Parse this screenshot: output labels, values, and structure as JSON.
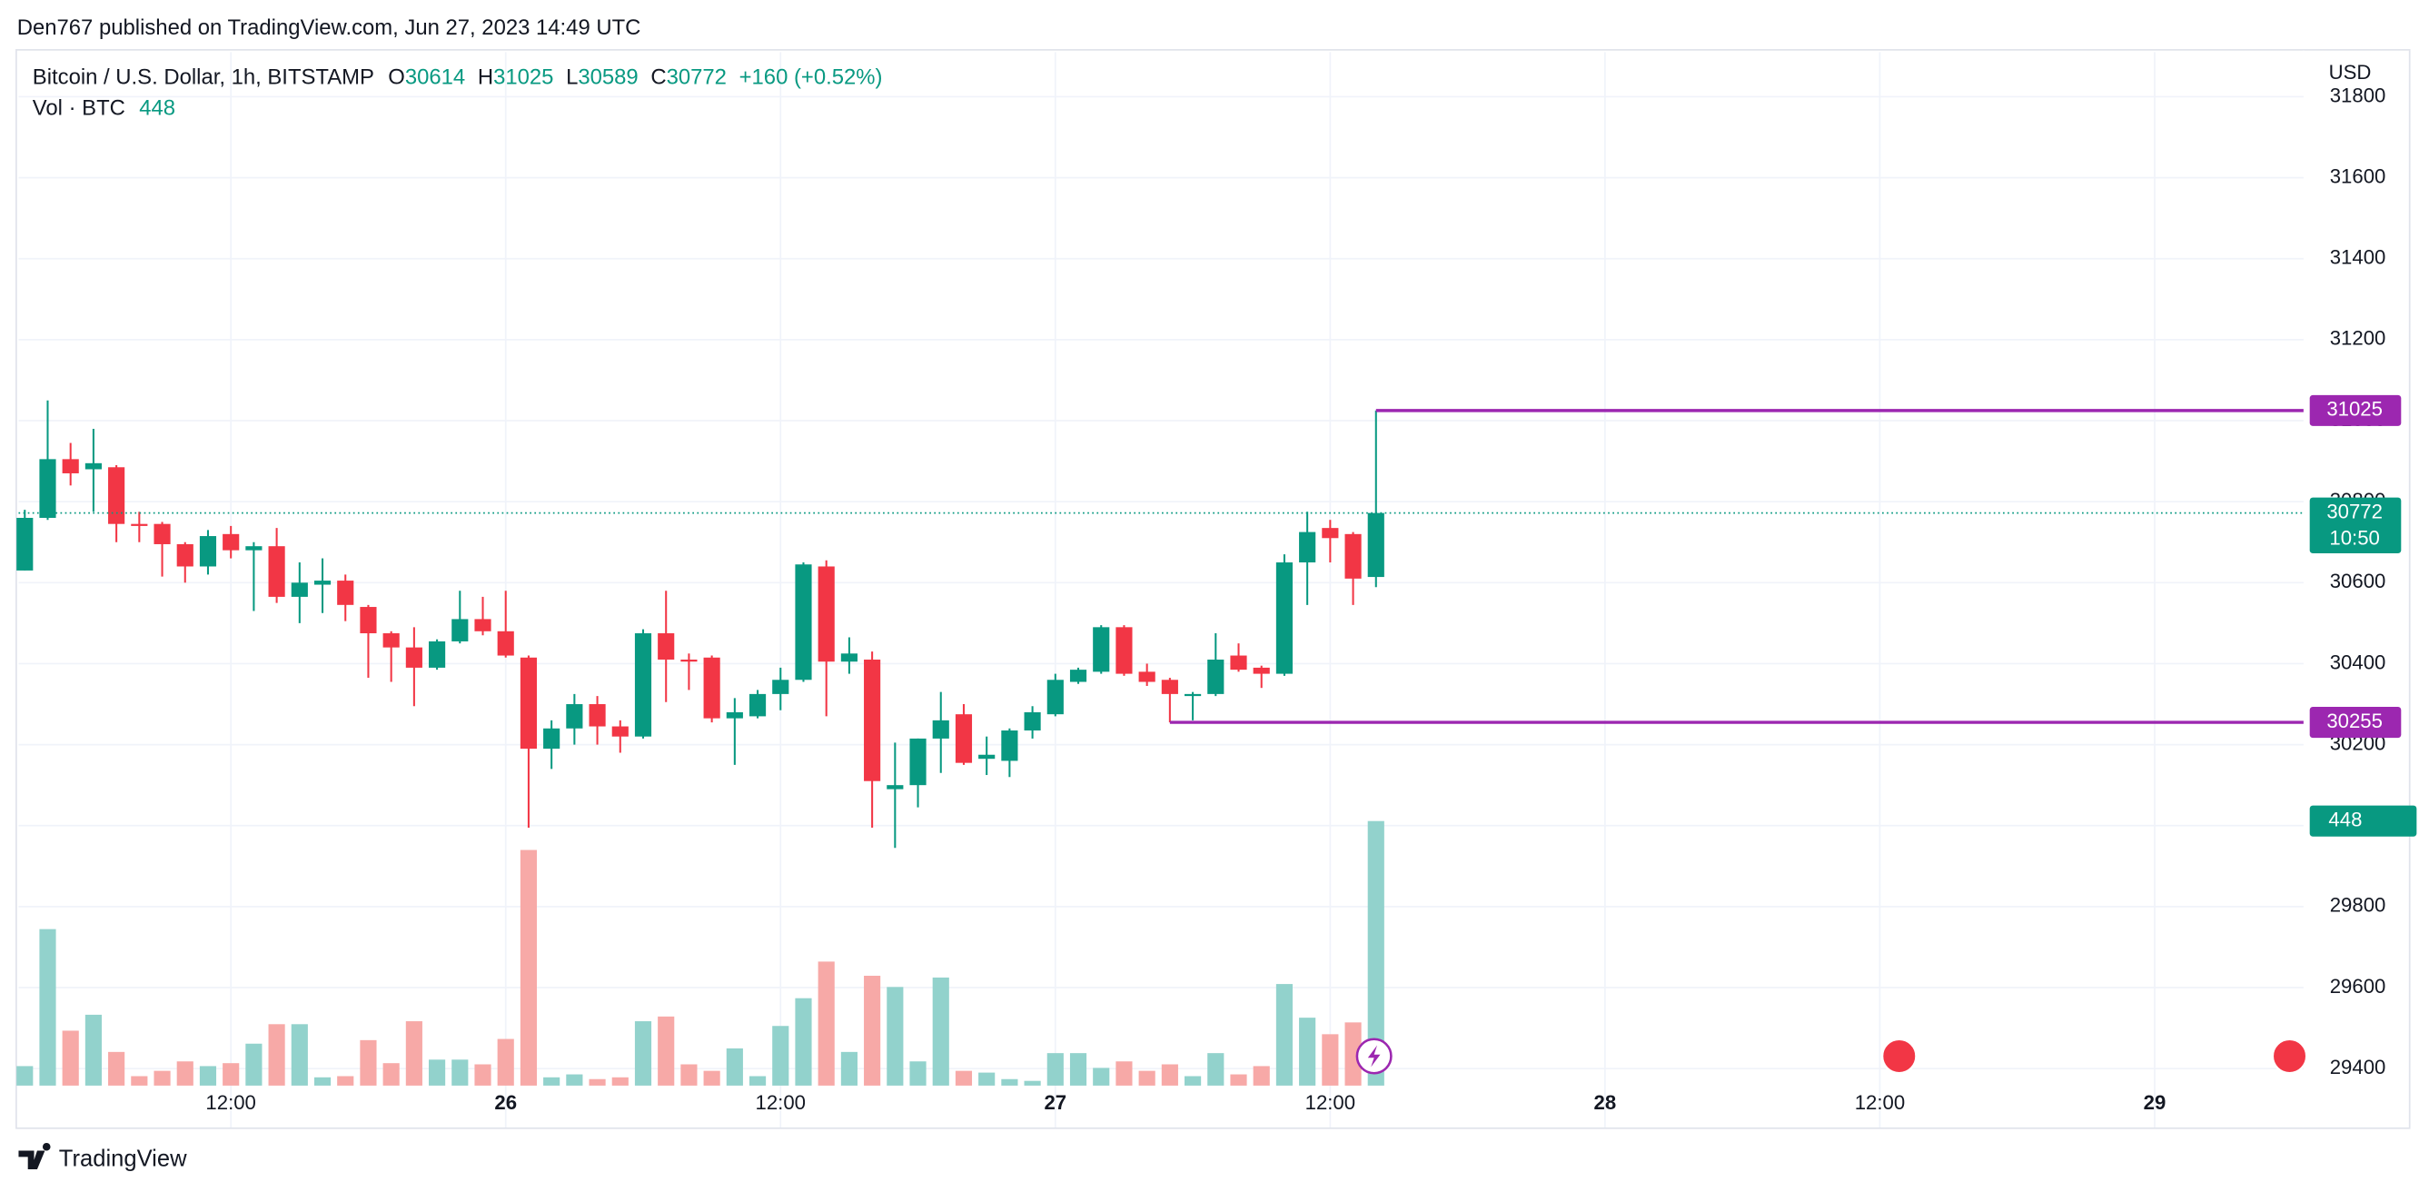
{
  "header": "Den767 published on TradingView.com, Jun 27, 2023 14:49 UTC",
  "footer": "TradingView",
  "chart_data": {
    "type": "candlestick",
    "legend": {
      "symbol": "Bitcoin / U.S. Dollar, 1h, BITSTAMP",
      "labels": [
        "O",
        "H",
        "L",
        "C"
      ],
      "change": "+160 (+0.52%)",
      "volume_label": "Vol · BTC"
    },
    "currency": "USD",
    "countdown": "10:50",
    "up_color": "#089981",
    "down_color": "#f23645",
    "volume_up_color": "#92d2cc",
    "volume_down_color": "#f7a9a7",
    "x": [
      3,
      4,
      5,
      6,
      7,
      8,
      9,
      10,
      11,
      12,
      13,
      14,
      15,
      16,
      17,
      18,
      19,
      20,
      21,
      22,
      23,
      24,
      25,
      26,
      27,
      28,
      29,
      30,
      31,
      32,
      33,
      34,
      35,
      36,
      37,
      38,
      39,
      40,
      41,
      42,
      43,
      44,
      45,
      46,
      47,
      48,
      49,
      50,
      51,
      52,
      53,
      54,
      55,
      56,
      57,
      58,
      59,
      60,
      61,
      62
    ],
    "open": [
      30630,
      30760,
      30905,
      30880,
      30885,
      30745,
      30745,
      30695,
      30640,
      30720,
      30680,
      30690,
      30565,
      30595,
      30605,
      30540,
      30475,
      30440,
      30390,
      30455,
      30510,
      30480,
      30415,
      30190,
      30240,
      30300,
      30245,
      30220,
      30475,
      30410,
      30415,
      30265,
      30270,
      30325,
      30360,
      30640,
      30405,
      30410,
      30090,
      30100,
      30215,
      30275,
      30165,
      30160,
      30235,
      30275,
      30355,
      30380,
      30490,
      30380,
      30360,
      30320,
      30325,
      30420,
      30390,
      30375,
      30650,
      30735,
      30720,
      30614
    ],
    "high": [
      30780,
      31050,
      30945,
      30980,
      30890,
      30775,
      30750,
      30700,
      30730,
      30740,
      30700,
      30735,
      30650,
      30660,
      30620,
      30545,
      30480,
      30490,
      30460,
      30580,
      30565,
      30580,
      30420,
      30260,
      30325,
      30320,
      30260,
      30485,
      30580,
      30425,
      30420,
      30315,
      30335,
      30390,
      30650,
      30655,
      30465,
      30430,
      30205,
      30215,
      30330,
      30300,
      30220,
      30240,
      30295,
      30375,
      30390,
      30495,
      30495,
      30400,
      30365,
      30330,
      30475,
      30450,
      30395,
      30670,
      30775,
      30755,
      30725,
      31025
    ],
    "low": [
      30630,
      30755,
      30840,
      30775,
      30700,
      30700,
      30615,
      30600,
      30620,
      30660,
      30530,
      30550,
      30500,
      30525,
      30505,
      30365,
      30355,
      30295,
      30385,
      30450,
      30470,
      30415,
      29995,
      30140,
      30200,
      30200,
      30180,
      30215,
      30305,
      30335,
      30255,
      30150,
      30265,
      30285,
      30355,
      30270,
      30375,
      29995,
      29945,
      30045,
      30130,
      30150,
      30125,
      30120,
      30215,
      30270,
      30350,
      30375,
      30370,
      30345,
      30255,
      30260,
      30320,
      30380,
      30340,
      30370,
      30545,
      30650,
      30545,
      30589
    ],
    "close": [
      30760,
      30905,
      30870,
      30895,
      30745,
      30740,
      30695,
      30640,
      30715,
      30680,
      30690,
      30565,
      30600,
      30605,
      30545,
      30475,
      30440,
      30390,
      30455,
      30510,
      30480,
      30420,
      30190,
      30240,
      30300,
      30245,
      30220,
      30475,
      30410,
      30405,
      30265,
      30280,
      30325,
      30360,
      30645,
      30405,
      30425,
      30110,
      30100,
      30215,
      30260,
      30155,
      30175,
      30235,
      30280,
      30360,
      30385,
      30490,
      30375,
      30355,
      30325,
      30325,
      30410,
      30385,
      30375,
      30650,
      30725,
      30710,
      30610,
      30772
    ],
    "volume": [
      33,
      265,
      93,
      120,
      57,
      16,
      25,
      41,
      33,
      38,
      71,
      104,
      104,
      14,
      16,
      77,
      38,
      109,
      44,
      44,
      36,
      79,
      399,
      14,
      19,
      11,
      14,
      109,
      117,
      36,
      25,
      63,
      16,
      101,
      148,
      210,
      57,
      186,
      167,
      41,
      183,
      25,
      22,
      11,
      8,
      55,
      55,
      30,
      41,
      25,
      36,
      16,
      55,
      19,
      33,
      172,
      115,
      87,
      107,
      448
    ],
    "levels": [
      {
        "value": 31025,
        "from": 62
      },
      {
        "value": 30255,
        "from": 53
      }
    ],
    "level_color": "#9c27b0",
    "xlim": [
      2.73,
      102.5
    ],
    "xticks": [
      {
        "value": 12,
        "label": "12:00"
      },
      {
        "value": 24,
        "label": "26"
      },
      {
        "value": 36,
        "label": "12:00"
      },
      {
        "value": 48,
        "label": "27"
      },
      {
        "value": 60,
        "label": "12:00"
      },
      {
        "value": 72,
        "label": "28"
      },
      {
        "value": 84,
        "label": "12:00"
      },
      {
        "value": 96,
        "label": "29"
      }
    ],
    "ylim": [
      29358,
      31910
    ],
    "yticks": [
      29400,
      29600,
      29800,
      30000,
      30200,
      30400,
      30600,
      30800,
      31000,
      31200,
      31400,
      31600,
      31800
    ],
    "volume_ylim": [
      0,
      1750
    ],
    "grid": true
  }
}
